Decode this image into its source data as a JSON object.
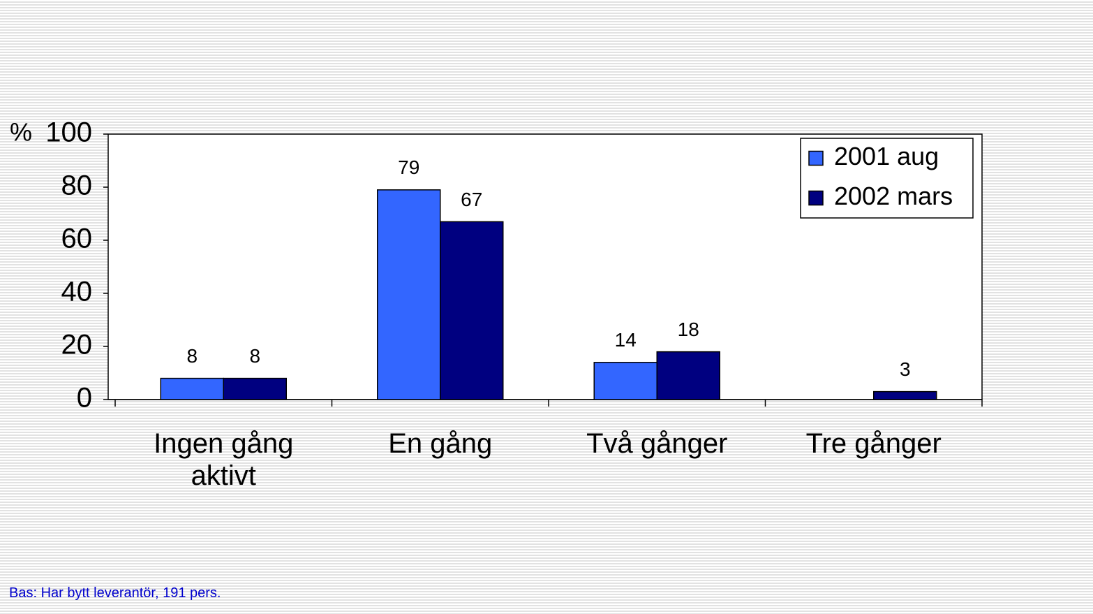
{
  "chart_data": {
    "type": "bar",
    "y_label": "%",
    "categories": [
      "Ingen gång aktivt",
      "En gång",
      "Två gånger",
      "Tre gånger"
    ],
    "series": [
      {
        "name": "2001 aug",
        "color": "#3366ff",
        "values": [
          8,
          79,
          14,
          null
        ]
      },
      {
        "name": "2002 mars",
        "color": "#000080",
        "values": [
          8,
          67,
          18,
          3
        ]
      }
    ],
    "ylim": [
      0,
      100
    ],
    "yticks": [
      0,
      20,
      40,
      60,
      80,
      100
    ],
    "legend": "upper right",
    "footnote": "Bas: Har bytt leverantör, 191 pers."
  }
}
